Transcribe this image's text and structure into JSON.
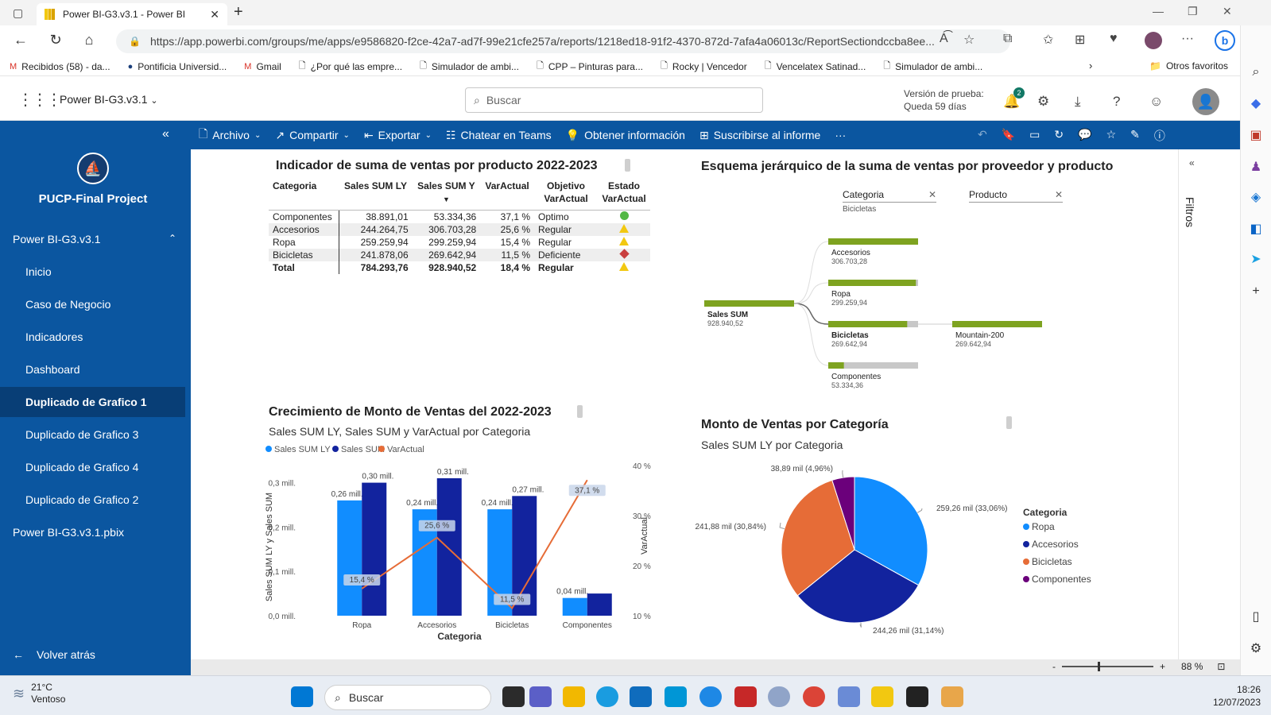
{
  "browser": {
    "tab_title": "Power BI-G3.v3.1 - Power BI",
    "url": "https://app.powerbi.com/groups/me/apps/e9586820-f2ce-42a7-ad7f-99e21cfe257a/reports/1218ed18-91f2-4370-872d-7afa4a06013c/ReportSectiondccba8ee...",
    "favorites": [
      {
        "label": "Recibidos (58) - da..."
      },
      {
        "label": "Pontificia Universid..."
      },
      {
        "label": "Gmail"
      },
      {
        "label": "¿Por qué las empre..."
      },
      {
        "label": "Simulador de ambi..."
      },
      {
        "label": "CPP – Pinturas para..."
      },
      {
        "label": "Rocky | Vencedor"
      },
      {
        "label": "Vencelatex Satinad..."
      },
      {
        "label": "Simulador de ambi..."
      }
    ],
    "other_favorites": "Otros favoritos"
  },
  "header": {
    "workspace": "Power BI-G3.v3.1",
    "search_placeholder": "Buscar",
    "trial_line1": "Versión de prueba:",
    "trial_line2": "Queda 59 días",
    "notification_count": "2"
  },
  "nav": {
    "app_title": "PUCP-Final Project",
    "group": "Power BI-G3.v3.1",
    "items": [
      {
        "label": "Inicio"
      },
      {
        "label": "Caso de Negocio"
      },
      {
        "label": "Indicadores"
      },
      {
        "label": "Dashboard"
      },
      {
        "label": "Duplicado de Grafico 1"
      },
      {
        "label": "Duplicado de Grafico 3"
      },
      {
        "label": "Duplicado de Grafico 4"
      },
      {
        "label": "Duplicado de Grafico 2"
      }
    ],
    "pbix": "Power BI-G3.v3.1.pbix",
    "back": "Volver atrás"
  },
  "toolbar": {
    "archivo": "Archivo",
    "compartir": "Compartir",
    "exportar": "Exportar",
    "teams": "Chatear en Teams",
    "info": "Obtener información",
    "subscribe": "Suscribirse al informe",
    "more": "···"
  },
  "filters_label": "Filtros",
  "table_visual": {
    "title": "Indicador de suma de ventas por producto 2022-2023",
    "headers": [
      "Categoria",
      "Sales SUM LY",
      "Sales SUM Y",
      "VarActual",
      "Objetivo VarActual",
      "Estado VarActual"
    ],
    "rows": [
      {
        "cat": "Componentes",
        "ly": "38.891,01",
        "y": "53.334,36",
        "var": "37,1 %",
        "obj": "Optimo",
        "status": "green"
      },
      {
        "cat": "Accesorios",
        "ly": "244.264,75",
        "y": "306.703,28",
        "var": "25,6 %",
        "obj": "Regular",
        "status": "yellow"
      },
      {
        "cat": "Ropa",
        "ly": "259.259,94",
        "y": "299.259,94",
        "var": "15,4 %",
        "obj": "Regular",
        "status": "yellow"
      },
      {
        "cat": "Bicicletas",
        "ly": "241.878,06",
        "y": "269.642,94",
        "var": "11,5 %",
        "obj": "Deficiente",
        "status": "red"
      }
    ],
    "total": {
      "cat": "Total",
      "ly": "784.293,76",
      "y": "928.940,52",
      "var": "18,4 %",
      "obj": "Regular",
      "status": "yellow"
    }
  },
  "tree_visual": {
    "title": "Esquema jerárquico de la suma de ventas por proveedor y producto",
    "level1_header": "Categoria",
    "level1_selected": "Bicicletas",
    "level2_header": "Producto",
    "root": {
      "label": "Sales SUM",
      "value": "928.940,52",
      "fraction": 1.0
    },
    "level1": [
      {
        "label": "Accesorios",
        "value": "306.703,28",
        "fraction": 1.0,
        "selected": false
      },
      {
        "label": "Ropa",
        "value": "299.259,94",
        "fraction": 0.976,
        "selected": false
      },
      {
        "label": "Bicicletas",
        "value": "269.642,94",
        "fraction": 0.879,
        "selected": true
      },
      {
        "label": "Componentes",
        "value": "53.334,36",
        "fraction": 0.174,
        "selected": false
      }
    ],
    "level2": [
      {
        "label": "Mountain-200",
        "value": "269.642,94",
        "fraction": 1.0
      }
    ]
  },
  "combo_visual": {
    "title": "Crecimiento de Monto de Ventas del 2022-2023",
    "subtitle": "Sales SUM LY, Sales SUM y VarActual por Categoria",
    "legend": [
      "Sales SUM LY",
      "Sales SUM",
      "VarActual"
    ]
  },
  "pie_visual": {
    "title": "Monto de Ventas por Categoría",
    "subtitle": "Sales SUM LY por Categoria",
    "legend_title": "Categoria"
  },
  "chart_data": [
    {
      "type": "bar",
      "title": "Crecimiento de Monto de Ventas del 2022-2023",
      "categories": [
        "Ropa",
        "Accesorios",
        "Bicicletas",
        "Componentes"
      ],
      "series": [
        {
          "name": "Sales SUM LY",
          "values": [
            0.26,
            0.24,
            0.24,
            0.04
          ],
          "color": "#118dff",
          "labels": [
            "0,26 mill.",
            "0,24 mill.",
            "0,24 mill.",
            "0,04 mill."
          ]
        },
        {
          "name": "Sales SUM",
          "values": [
            0.3,
            0.31,
            0.27,
            0.05
          ],
          "color": "#12239e",
          "labels": [
            "0,30 mill.",
            "0,31 mill.",
            "0,27 mill.",
            ""
          ]
        },
        {
          "name": "VarActual",
          "type": "line",
          "axis": "secondary",
          "values": [
            15.4,
            25.6,
            11.5,
            37.1
          ],
          "color": "#e66c37",
          "labels": [
            "15,4 %",
            "25,6 %",
            "11,5 %",
            "37,1 %"
          ]
        }
      ],
      "xlabel": "Categoria",
      "ylabel": "Sales SUM LY y Sales SUM",
      "y2label": "VarActual",
      "ylim": [
        0,
        0.31
      ],
      "yticks": [
        "0,0 mill.",
        "0,1 mill.",
        "0,2 mill.",
        "0,3 mill."
      ],
      "y2lim": [
        10,
        40
      ],
      "y2ticks": [
        "10 %",
        "20 %",
        "30 %",
        "40 %"
      ],
      "grid": false,
      "legend": "top-left"
    },
    {
      "type": "pie",
      "title": "Monto de Ventas por Categoría",
      "subtitle": "Sales SUM LY por Categoria",
      "slices": [
        {
          "name": "Ropa",
          "value": 259.26,
          "label": "259,26 mil (33,06%)",
          "color": "#118dff"
        },
        {
          "name": "Accesorios",
          "value": 244.26,
          "label": "244,26 mil (31,14%)",
          "color": "#12239e"
        },
        {
          "name": "Bicicletas",
          "value": 241.88,
          "label": "241,88 mil (30,84%)",
          "color": "#e66c37"
        },
        {
          "name": "Componentes",
          "value": 38.89,
          "label": "38,89 mil (4,96%)",
          "color": "#6b007b"
        }
      ],
      "legend_title": "Categoria",
      "legend": "right"
    }
  ],
  "statusbar": {
    "zoom": "88 %",
    "minus": "-",
    "plus": "+"
  },
  "taskbar": {
    "temp": "21°C",
    "weather": "Ventoso",
    "search": "Buscar",
    "time": "18:26",
    "date": "12/07/2023"
  },
  "colors": {
    "nav": "#0b56a0",
    "nav_active": "#083e76",
    "tree_bar": "#7ea320",
    "tree_rest": "#c8c8c8"
  }
}
